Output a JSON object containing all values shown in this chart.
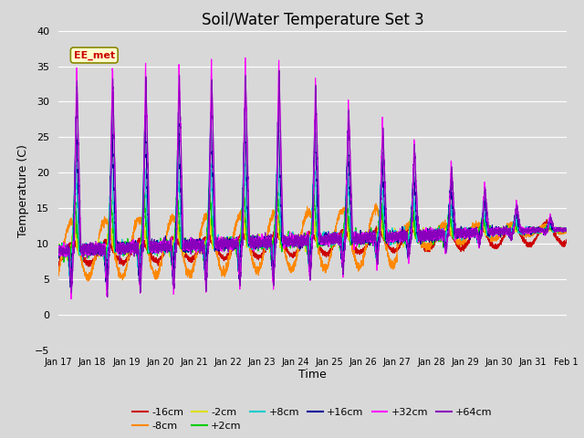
{
  "title": "Soil/Water Temperature Set 3",
  "xlabel": "Time",
  "ylabel": "Temperature (C)",
  "ylim": [
    -5,
    40
  ],
  "background_color": "#d8d8d8",
  "plot_bg_color": "#d8d8d8",
  "annotation_text": "EE_met",
  "annotation_bg": "#ffffcc",
  "annotation_border": "#cc0000",
  "series": [
    {
      "label": "-16cm",
      "color": "#cc0000"
    },
    {
      "label": "-8cm",
      "color": "#ff8800"
    },
    {
      "label": "-2cm",
      "color": "#dddd00"
    },
    {
      "label": "+2cm",
      "color": "#00cc00"
    },
    {
      "label": "+8cm",
      "color": "#00cccc"
    },
    {
      "label": "+16cm",
      "color": "#000099"
    },
    {
      "label": "+32cm",
      "color": "#ff00ff"
    },
    {
      "label": "+64cm",
      "color": "#8800bb"
    }
  ],
  "xtick_labels": [
    "Jan 17",
    "Jan 18",
    "Jan 19",
    "Jan 20",
    "Jan 21",
    "Jan 22",
    "Jan 23",
    "Jan 24",
    "Jan 25",
    "Jan 26",
    "Jan 27",
    "Jan 28",
    "Jan 29",
    "Jan 30",
    "Jan 31",
    "Feb 1"
  ],
  "grid_color": "#ffffff",
  "title_fontsize": 12
}
